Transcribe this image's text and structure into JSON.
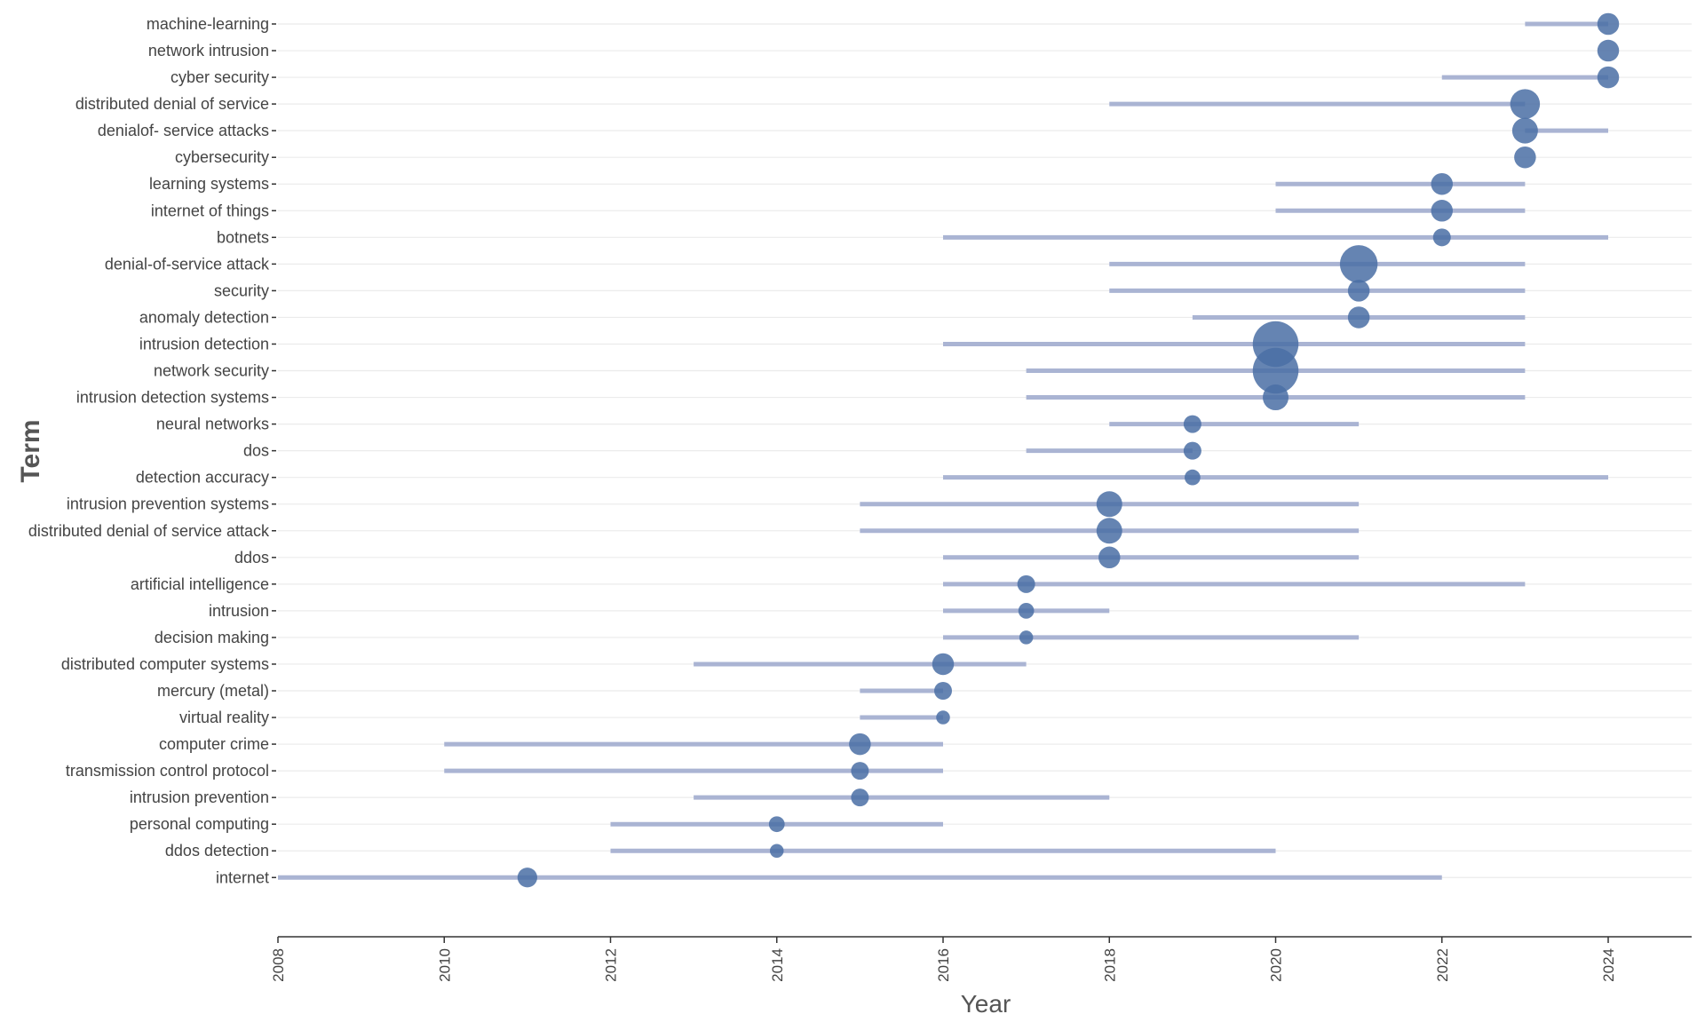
{
  "chart_data": {
    "type": "scatter",
    "subtype": "trend-topics-range-bubble",
    "title": "",
    "xlabel": "Year",
    "ylabel": "Term",
    "xlim": [
      2008,
      2025
    ],
    "x_ticks": [
      "2008",
      "2010",
      "2012",
      "2014",
      "2016",
      "2018",
      "2020",
      "2022",
      "2024"
    ],
    "grid": true,
    "colors": {
      "range": "#aab4d3",
      "point": "#4a6fa5",
      "gridline": "#ebebeb",
      "axis": "#333333"
    },
    "series": [
      {
        "term": "machine-learning",
        "start": 2023,
        "end": 2024,
        "median": 2024,
        "size": 3
      },
      {
        "term": "network intrusion",
        "start": 2024,
        "end": 2024,
        "median": 2024,
        "size": 3
      },
      {
        "term": "cyber security",
        "start": 2022,
        "end": 2024,
        "median": 2024,
        "size": 3
      },
      {
        "term": "distributed denial of service",
        "start": 2018,
        "end": 2023,
        "median": 2023,
        "size": 5
      },
      {
        "term": "denialof- service attacks",
        "start": 2023,
        "end": 2024,
        "median": 2023,
        "size": 4
      },
      {
        "term": "cybersecurity",
        "start": 2023,
        "end": 2023,
        "median": 2023,
        "size": 3
      },
      {
        "term": "learning systems",
        "start": 2020,
        "end": 2023,
        "median": 2022,
        "size": 3
      },
      {
        "term": "internet of things",
        "start": 2020,
        "end": 2023,
        "median": 2022,
        "size": 3
      },
      {
        "term": "botnets",
        "start": 2016,
        "end": 2024,
        "median": 2022,
        "size": 2
      },
      {
        "term": "denial-of-service attack",
        "start": 2018,
        "end": 2023,
        "median": 2021,
        "size": 7
      },
      {
        "term": "security",
        "start": 2018,
        "end": 2023,
        "median": 2021,
        "size": 3
      },
      {
        "term": "anomaly detection",
        "start": 2019,
        "end": 2023,
        "median": 2021,
        "size": 3
      },
      {
        "term": "intrusion detection",
        "start": 2016,
        "end": 2023,
        "median": 2020,
        "size": 9
      },
      {
        "term": "network security",
        "start": 2017,
        "end": 2023,
        "median": 2020,
        "size": 9
      },
      {
        "term": "intrusion detection systems",
        "start": 2017,
        "end": 2023,
        "median": 2020,
        "size": 4
      },
      {
        "term": "neural networks",
        "start": 2018,
        "end": 2021,
        "median": 2019,
        "size": 2
      },
      {
        "term": "dos",
        "start": 2017,
        "end": 2019,
        "median": 2019,
        "size": 2
      },
      {
        "term": "detection accuracy",
        "start": 2016,
        "end": 2024,
        "median": 2019,
        "size": 1.5
      },
      {
        "term": "intrusion prevention systems",
        "start": 2015,
        "end": 2021,
        "median": 2018,
        "size": 4
      },
      {
        "term": "distributed denial of service attack",
        "start": 2015,
        "end": 2021,
        "median": 2018,
        "size": 4
      },
      {
        "term": "ddos",
        "start": 2016,
        "end": 2021,
        "median": 2018,
        "size": 3
      },
      {
        "term": "artificial intelligence",
        "start": 2016,
        "end": 2023,
        "median": 2017,
        "size": 2
      },
      {
        "term": "intrusion",
        "start": 2016,
        "end": 2018,
        "median": 2017,
        "size": 1.5
      },
      {
        "term": "decision making",
        "start": 2016,
        "end": 2021,
        "median": 2017,
        "size": 1
      },
      {
        "term": "distributed computer systems",
        "start": 2013,
        "end": 2017,
        "median": 2016,
        "size": 3
      },
      {
        "term": "mercury (metal)",
        "start": 2015,
        "end": 2016,
        "median": 2016,
        "size": 2
      },
      {
        "term": "virtual reality",
        "start": 2015,
        "end": 2016,
        "median": 2016,
        "size": 1
      },
      {
        "term": "computer crime",
        "start": 2010,
        "end": 2016,
        "median": 2015,
        "size": 3
      },
      {
        "term": "transmission control protocol",
        "start": 2010,
        "end": 2016,
        "median": 2015,
        "size": 2
      },
      {
        "term": "intrusion prevention",
        "start": 2013,
        "end": 2018,
        "median": 2015,
        "size": 2
      },
      {
        "term": "personal computing",
        "start": 2012,
        "end": 2016,
        "median": 2014,
        "size": 1.5
      },
      {
        "term": "ddos detection",
        "start": 2012,
        "end": 2020,
        "median": 2014,
        "size": 1
      },
      {
        "term": "internet",
        "start": 2008,
        "end": 2022,
        "median": 2011,
        "size": 2.5
      }
    ]
  }
}
